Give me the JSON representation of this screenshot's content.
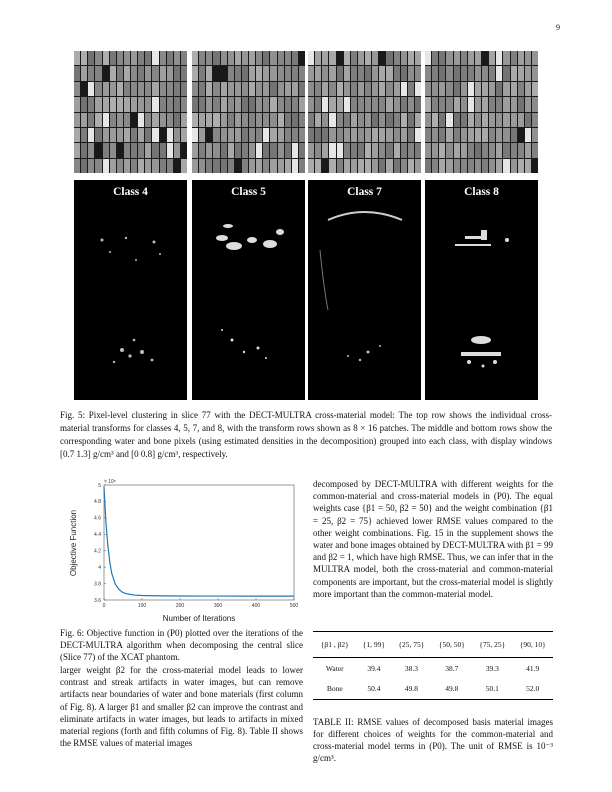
{
  "page_number": "9",
  "figure5": {
    "classes": [
      "Class 4",
      "Class 5",
      "Class 7",
      "Class 8"
    ],
    "caption": "Fig. 5: Pixel-level clustering in slice 77 with the DECT-MULTRA cross-material model: The top row shows the individual cross-material transforms for classes 4, 5, 7, and 8, with the transform rows shown as 8 × 16 patches. The middle and bottom rows show the corresponding water and bone pixels (using estimated densities in the decomposition) grouped into each class, with display windows [0.7 1.3] g/cm³ and [0 0.8] g/cm³, respectively."
  },
  "figure6": {
    "chart_data": {
      "type": "line",
      "xlabel": "Number of Iterations",
      "ylabel": "Objective Function",
      "scale_label": "× 10⁵",
      "xlim": [
        0,
        500
      ],
      "ylim": [
        3.6,
        5.0
      ],
      "xticks": [
        "0",
        "100",
        "200",
        "300",
        "400",
        "500"
      ],
      "yticks": [
        "3.6",
        "3.8",
        "4",
        "4.2",
        "4.4",
        "4.6",
        "4.8",
        "5"
      ],
      "x": [
        0,
        5,
        10,
        15,
        20,
        30,
        40,
        50,
        60,
        80,
        100,
        130,
        160,
        200,
        250,
        300,
        400,
        500
      ],
      "y": [
        4.98,
        4.55,
        4.27,
        4.07,
        3.93,
        3.79,
        3.725,
        3.69,
        3.675,
        3.66,
        3.655,
        3.652,
        3.65,
        3.649,
        3.648,
        3.648,
        3.647,
        3.647
      ]
    },
    "caption": "Fig. 6: Objective function in (P0) plotted over the iterations of the DECT-MULTRA algorithm when decomposing the central slice (Slice 77) of the XCAT phantom."
  },
  "text": {
    "left": "larger weight β2 for the cross-material model leads to lower contrast and streak artifacts in water images, but can remove artifacts near boundaries of water and bone materials (first column of Fig. 8). A larger β1 and smaller β2 can improve the contrast and eliminate artifacts in water images, but leads to artifacts in mixed material regions (forth and fifth columns of Fig. 8). Table II shows the RMSE values of material images",
    "right": "decomposed by DECT-MULTRA with different weights for the common-material and cross-material models in (P0). The equal weights case {β1 = 50, β2 = 50} and the weight combination {β1 = 25, β2 = 75} achieved lower RMSE values compared to the other weight combinations. Fig. 15 in the supplement shows the water and bone images obtained by DECT-MULTRA with β1 = 99 and β2 = 1, which have high RMSE. Thus, we can infer that in the MULTRA model, both the cross-material and common-material components are important, but the cross-material model is slightly more important than the common-material model."
  },
  "table2": {
    "headers": [
      "{β1 , β2}",
      "{1, 99}",
      "{25, 75}",
      "{50, 50}",
      "{75, 25}",
      "{90, 10}"
    ],
    "rows": [
      {
        "label": "Water",
        "values": [
          "39.4",
          "38.3",
          "38.7",
          "39.3",
          "41.9"
        ]
      },
      {
        "label": "Bone",
        "values": [
          "50.4",
          "49.8",
          "49.8",
          "50.1",
          "52.0"
        ]
      }
    ],
    "caption": "TABLE II: RMSE values of decomposed basis material images for different choices of weights for the common-material and cross-material model terms in (P0). The unit of RMSE is 10⁻³ g/cm³."
  }
}
